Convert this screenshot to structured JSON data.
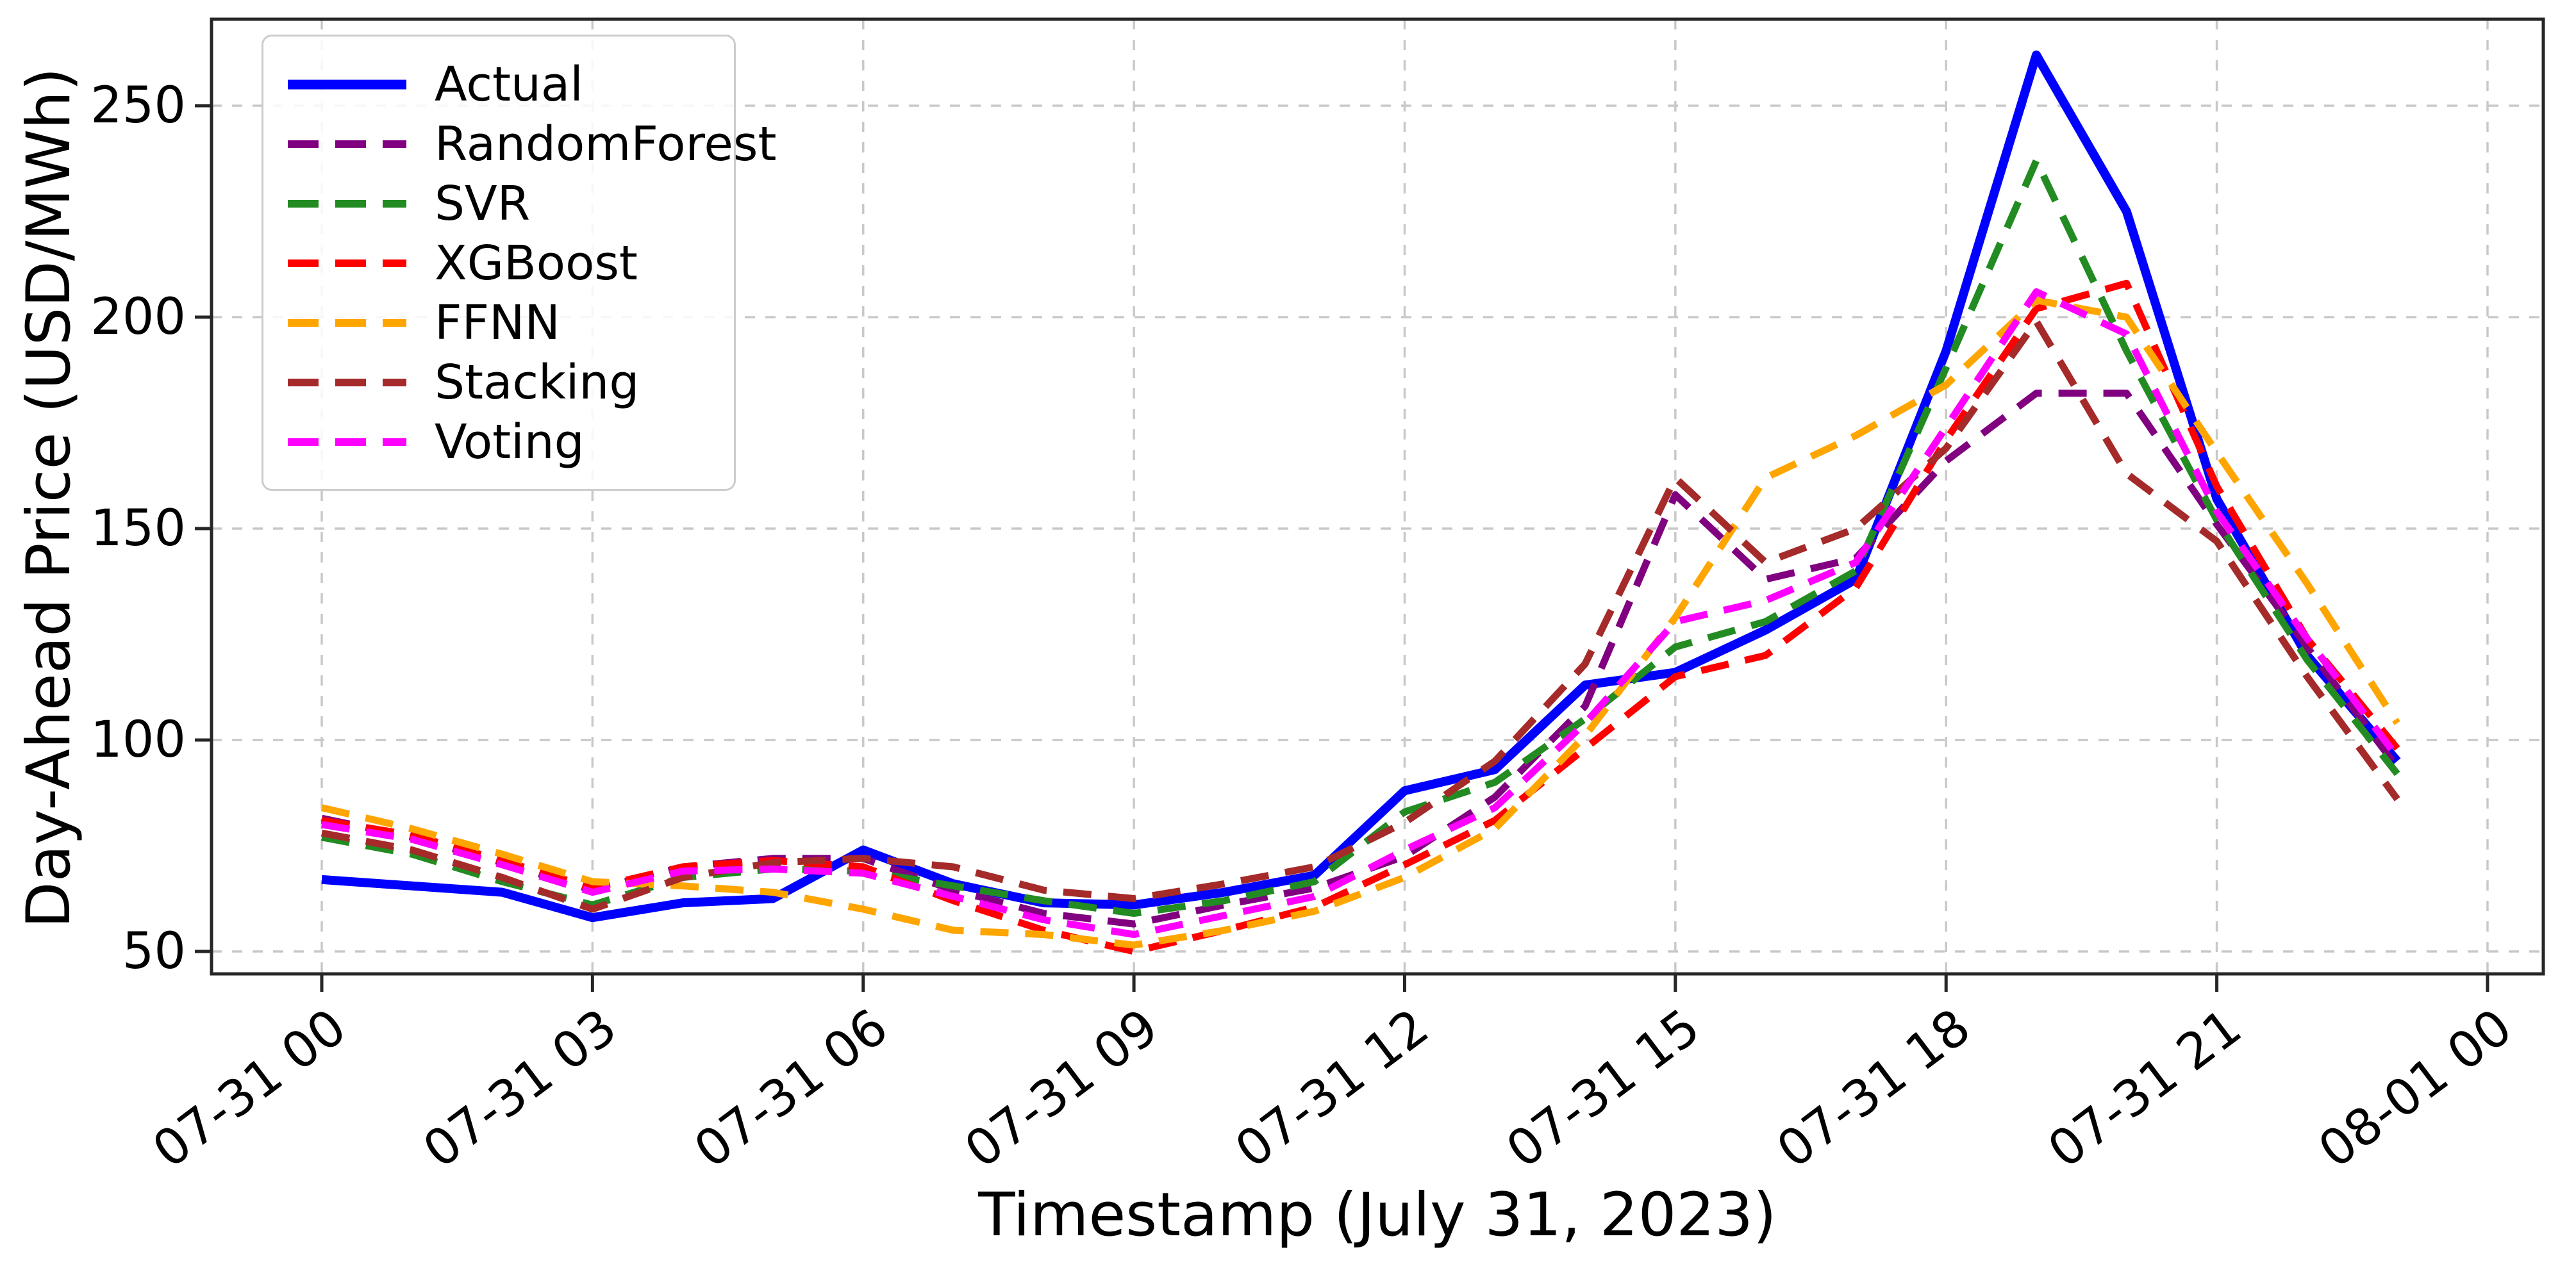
{
  "chart_data": {
    "type": "line",
    "title": "",
    "xlabel": "Timestamp (July 31, 2023)",
    "ylabel": "Day-Ahead Price (USD/MWh)",
    "grid": true,
    "grid_style": "dashed",
    "legend_position": "upper left",
    "ylim": [
      45,
      271
    ],
    "ytick_values": [
      50,
      100,
      150,
      200,
      250
    ],
    "xtick_hours": [
      0,
      3,
      6,
      9,
      12,
      15,
      18,
      21,
      24
    ],
    "xtick_labels": [
      "07-31 00",
      "07-31 03",
      "07-31 06",
      "07-31 09",
      "07-31 12",
      "07-31 15",
      "07-31 18",
      "07-31 21",
      "08-01 00"
    ],
    "x_hours": [
      0,
      1,
      2,
      3,
      4,
      5,
      6,
      7,
      8,
      9,
      10,
      11,
      12,
      13,
      14,
      15,
      16,
      17,
      18,
      19,
      20,
      21,
      22,
      23
    ],
    "series": [
      {
        "name": "Actual",
        "color": "#0000ff",
        "style": "solid",
        "values": [
          67,
          65.5,
          64,
          58,
          61.5,
          62.5,
          74,
          66,
          61.5,
          61,
          64,
          68,
          88,
          93,
          113,
          116,
          126,
          138,
          192,
          262,
          225,
          157,
          120,
          95
        ]
      },
      {
        "name": "RandomForest",
        "color": "#800080",
        "style": "dashed",
        "values": [
          81.5,
          77,
          71,
          64.5,
          70,
          72,
          72,
          64.5,
          59,
          56.5,
          61,
          65,
          72.5,
          86.5,
          108,
          158,
          138,
          143,
          166,
          182,
          182,
          151,
          122,
          93.5
        ]
      },
      {
        "name": "SVR",
        "color": "#228b22",
        "style": "dashed",
        "values": [
          77,
          73,
          66.5,
          61,
          67.5,
          69.5,
          69,
          65.5,
          62,
          59,
          62,
          66.5,
          83,
          90,
          105,
          122,
          128,
          140,
          188,
          237,
          192,
          152,
          119,
          92
        ]
      },
      {
        "name": "XGBoost",
        "color": "#ff0000",
        "style": "dashed",
        "values": [
          81,
          77.5,
          71.5,
          65,
          70,
          71.5,
          70,
          62,
          55,
          50,
          55,
          60.5,
          70.5,
          81,
          98,
          115,
          120,
          136,
          171,
          202,
          208,
          160,
          124,
          98
        ]
      },
      {
        "name": "FFNN",
        "color": "#ffa500",
        "style": "dashed",
        "values": [
          84,
          79,
          73,
          66.5,
          65.5,
          64,
          60,
          55,
          54,
          51.5,
          55,
          59.5,
          67.5,
          79,
          101,
          129,
          162,
          172,
          184,
          204,
          200,
          168,
          137,
          104
        ]
      },
      {
        "name": "Stacking",
        "color": "#a52a2a",
        "style": "dashed",
        "values": [
          78,
          74,
          67.5,
          60,
          67.5,
          71,
          72,
          70,
          64.5,
          62.5,
          66,
          70,
          80.5,
          95,
          118,
          162,
          142,
          150,
          169,
          199,
          163,
          147,
          115,
          86
        ]
      },
      {
        "name": "Voting",
        "color": "#ff00ff",
        "style": "dashed",
        "values": [
          80,
          76.5,
          70.5,
          64,
          69,
          69.5,
          68.5,
          63,
          57.5,
          54,
          58.5,
          63,
          74,
          84,
          104,
          128,
          133,
          142,
          174,
          206,
          196,
          154,
          124,
          96
        ]
      }
    ]
  },
  "style_colors": {
    "gridline": "#c9c9c9",
    "spine": "#262626",
    "tick": "#262626",
    "text": "#000000",
    "legend_border": "#cccccc"
  }
}
